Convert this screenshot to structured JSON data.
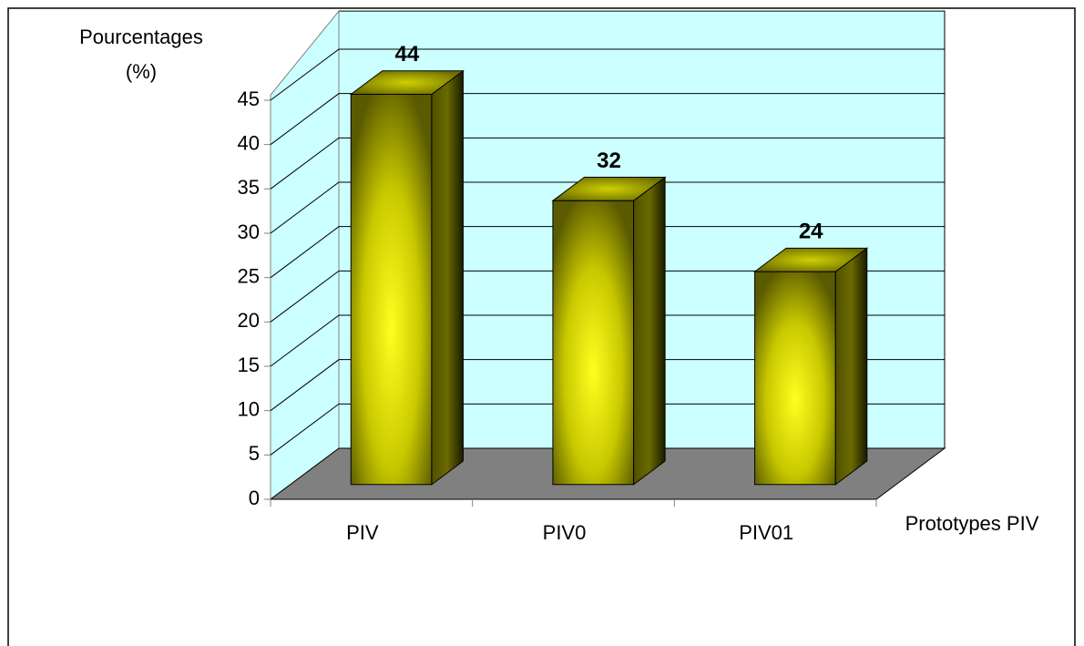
{
  "chart_data": {
    "type": "bar3d",
    "y_label": "Pourcentages (%)",
    "x_label": "Prototypes PIV",
    "categories": [
      "PIV",
      "PIV0",
      "PIV01"
    ],
    "values": [
      44,
      32,
      24
    ],
    "ylim": [
      0,
      45
    ],
    "yticks": [
      0,
      5,
      10,
      15,
      20,
      25,
      30,
      35,
      40,
      45
    ],
    "grid": true,
    "color": "#ffff00",
    "wall_color": "#ccffff",
    "floor_color": "#808080"
  }
}
